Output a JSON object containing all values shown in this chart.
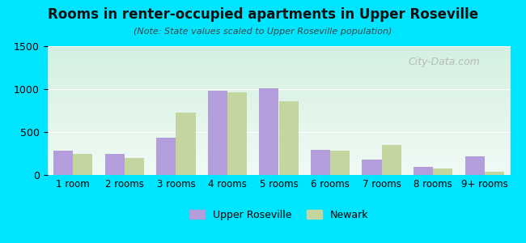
{
  "title": "Rooms in renter-occupied apartments in Upper Roseville",
  "subtitle": "(Note: State values scaled to Upper Roseville population)",
  "categories": [
    "1 room",
    "2 rooms",
    "3 rooms",
    "4 rooms",
    "5 rooms",
    "6 rooms",
    "7 rooms",
    "8 rooms",
    "9+ rooms"
  ],
  "upper_roseville": [
    280,
    250,
    430,
    980,
    1005,
    290,
    175,
    95,
    215
  ],
  "newark": [
    250,
    195,
    730,
    960,
    860,
    280,
    345,
    75,
    35
  ],
  "color_ur": "#b39ddb",
  "color_newark": "#c5d5a0",
  "ylim": [
    0,
    1500
  ],
  "yticks": [
    0,
    500,
    1000,
    1500
  ],
  "bg_outer": "#00e5ff",
  "bg_plot_top": "#f0faf5",
  "bar_width": 0.38,
  "legend_ur": "Upper Roseville",
  "legend_newark": "Newark",
  "watermark": "City-Data.com"
}
